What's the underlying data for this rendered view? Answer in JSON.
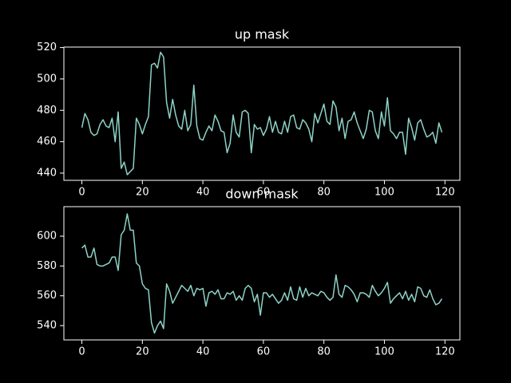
{
  "chart_data": [
    {
      "type": "line",
      "title": "up mask",
      "x": [
        0,
        1,
        2,
        3,
        4,
        5,
        6,
        7,
        8,
        9,
        10,
        11,
        12,
        13,
        14,
        15,
        16,
        17,
        18,
        19,
        20,
        21,
        22,
        23,
        24,
        25,
        26,
        27,
        28,
        29,
        30,
        31,
        32,
        33,
        34,
        35,
        36,
        37,
        38,
        39,
        40,
        41,
        42,
        43,
        44,
        45,
        46,
        47,
        48,
        49,
        50,
        51,
        52,
        53,
        54,
        55,
        56,
        57,
        58,
        59,
        60,
        61,
        62,
        63,
        64,
        65,
        66,
        67,
        68,
        69,
        70,
        71,
        72,
        73,
        74,
        75,
        76,
        77,
        78,
        79,
        80,
        81,
        82,
        83,
        84,
        85,
        86,
        87,
        88,
        89,
        90,
        91,
        92,
        93,
        94,
        95,
        96,
        97,
        98,
        99,
        100,
        101,
        102,
        103,
        104,
        105,
        106,
        107,
        108,
        109,
        110,
        111,
        112,
        113,
        114,
        115,
        116,
        117,
        118,
        119
      ],
      "series": [
        {
          "color": "#8dd3c7",
          "values": [
            469,
            478,
            474,
            466,
            464,
            465,
            471,
            474,
            470,
            469,
            475,
            460,
            479,
            443,
            447,
            439,
            441,
            443,
            475,
            471,
            465,
            471,
            476,
            509,
            510,
            507,
            517,
            514,
            485,
            475,
            487,
            477,
            470,
            468,
            480,
            467,
            471,
            496,
            470,
            462,
            461,
            466,
            470,
            467,
            477,
            473,
            467,
            466,
            453,
            459,
            477,
            466,
            463,
            479,
            480,
            478,
            453,
            471,
            468,
            469,
            464,
            468,
            476,
            466,
            473,
            466,
            465,
            473,
            466,
            476,
            477,
            469,
            468,
            474,
            472,
            468,
            460,
            478,
            472,
            478,
            484,
            473,
            471,
            486,
            482,
            467,
            475,
            462,
            473,
            474,
            479,
            472,
            467,
            462,
            468,
            480,
            479,
            467,
            462,
            479,
            470,
            488,
            467,
            465,
            462,
            466,
            466,
            452,
            475,
            469,
            461,
            472,
            474,
            468,
            463,
            464,
            466,
            459,
            472,
            466
          ]
        }
      ],
      "xlim": [
        -5.95,
        124.95
      ],
      "ylim": [
        435.4,
        520.3
      ],
      "xticks": [
        0,
        20,
        40,
        60,
        80,
        100,
        120
      ],
      "yticks": [
        440,
        460,
        480,
        500,
        520
      ]
    },
    {
      "type": "line",
      "title": "down mask",
      "x": [
        0,
        1,
        2,
        3,
        4,
        5,
        6,
        7,
        8,
        9,
        10,
        11,
        12,
        13,
        14,
        15,
        16,
        17,
        18,
        19,
        20,
        21,
        22,
        23,
        24,
        25,
        26,
        27,
        28,
        29,
        30,
        31,
        32,
        33,
        34,
        35,
        36,
        37,
        38,
        39,
        40,
        41,
        42,
        43,
        44,
        45,
        46,
        47,
        48,
        49,
        50,
        51,
        52,
        53,
        54,
        55,
        56,
        57,
        58,
        59,
        60,
        61,
        62,
        63,
        64,
        65,
        66,
        67,
        68,
        69,
        70,
        71,
        72,
        73,
        74,
        75,
        76,
        77,
        78,
        79,
        80,
        81,
        82,
        83,
        84,
        85,
        86,
        87,
        88,
        89,
        90,
        91,
        92,
        93,
        94,
        95,
        96,
        97,
        98,
        99,
        100,
        101,
        102,
        103,
        104,
        105,
        106,
        107,
        108,
        109,
        110,
        111,
        112,
        113,
        114,
        115,
        116,
        117,
        118,
        119
      ],
      "series": [
        {
          "color": "#8dd3c7",
          "values": [
            592,
            594,
            586,
            586,
            592,
            581,
            580,
            580,
            581,
            582,
            586,
            586,
            577,
            601,
            604,
            615,
            604,
            604,
            582,
            580,
            568,
            565,
            564,
            542,
            535,
            540,
            543,
            538,
            568,
            563,
            555,
            559,
            563,
            567,
            565,
            563,
            567,
            560,
            565,
            564,
            565,
            553,
            562,
            563,
            561,
            564,
            558,
            558,
            562,
            561,
            563,
            557,
            560,
            557,
            565,
            567,
            565,
            556,
            561,
            547,
            562,
            562,
            559,
            561,
            558,
            555,
            557,
            562,
            557,
            566,
            558,
            557,
            566,
            559,
            565,
            560,
            562,
            561,
            560,
            563,
            562,
            559,
            557,
            559,
            574,
            561,
            559,
            567,
            566,
            564,
            561,
            556,
            562,
            562,
            561,
            559,
            567,
            563,
            560,
            562,
            565,
            569,
            555,
            558,
            560,
            562,
            558,
            563,
            557,
            561,
            556,
            566,
            565,
            560,
            559,
            564,
            558,
            554,
            555,
            558
          ]
        }
      ],
      "xlim": [
        -5.95,
        124.95
      ],
      "ylim": [
        530.4,
        619.8
      ],
      "xticks": [
        0,
        20,
        40,
        60,
        80,
        100,
        120
      ],
      "yticks": [
        540,
        560,
        580,
        600
      ]
    }
  ]
}
